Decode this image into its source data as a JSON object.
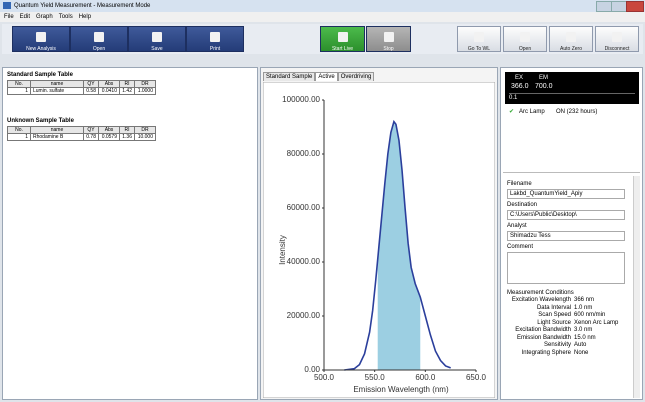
{
  "window": {
    "title": "Quantum Yield Measurement - Measurement Mode"
  },
  "menu": [
    "File",
    "Edit",
    "Graph",
    "Tools",
    "Help"
  ],
  "toolbar": [
    "New Analysis",
    "Open",
    "Save",
    "Print"
  ],
  "live": [
    "Start Live",
    "Stop"
  ],
  "instrument": [
    "Go To WL",
    "Open",
    "Auto Zero",
    "Disconnect"
  ],
  "standard_table": {
    "title": "Standard Sample Table",
    "columns": [
      "No.",
      "name",
      "QY",
      "Abs",
      "RI",
      "DR"
    ],
    "rows": [
      [
        "1",
        "Lumin. sulfate",
        "0.58",
        "0.0410",
        "1.42",
        "1.0000"
      ]
    ]
  },
  "unknown_table": {
    "title": "Unknown Sample Table",
    "columns": [
      "No.",
      "name",
      "QY",
      "Abs",
      "RI",
      "DR"
    ],
    "rows": [
      [
        "1",
        "Rhodamine B",
        "0.78",
        "0.0579",
        "1.36",
        "10.000"
      ]
    ]
  },
  "tabs": [
    "Standard Sample",
    "Active",
    "Overdriving"
  ],
  "chart": {
    "type": "line",
    "x_label": "Emission Wavelength (nm)",
    "y_label": "Intensity",
    "x": [
      520,
      530,
      535,
      540,
      545,
      548,
      551,
      554,
      557,
      560,
      563,
      566,
      569,
      571,
      574,
      577,
      580,
      583,
      586,
      590,
      595,
      600,
      605,
      610,
      615,
      620,
      625
    ],
    "values": [
      0,
      500,
      2000,
      6000,
      14000,
      22000,
      33000,
      45000,
      57000,
      69000,
      80000,
      88000,
      92000,
      91000,
      85000,
      74000,
      60000,
      47000,
      38000,
      32000,
      27000,
      20000,
      13000,
      7000,
      3500,
      1500,
      800
    ],
    "color": "#2b3f9c",
    "shaded_range": [
      553,
      595
    ],
    "shade_color": "#9ccfe2",
    "xlim": [
      500,
      650
    ],
    "ylim": [
      0,
      100000
    ],
    "xticks": [
      {
        "value": 500,
        "label": "500.0"
      },
      {
        "value": 550,
        "label": "550.0"
      },
      {
        "value": 600,
        "label": "600.0"
      },
      {
        "value": 650,
        "label": "650.0"
      }
    ],
    "yticks": [
      {
        "value": 0,
        "label": "0.00"
      },
      {
        "value": 20000,
        "label": "20000.00"
      },
      {
        "value": 40000,
        "label": "40000.00"
      },
      {
        "value": 60000,
        "label": "60000.00"
      },
      {
        "value": 80000,
        "label": "80000.00"
      },
      {
        "value": 100000,
        "label": "100000.00"
      }
    ]
  },
  "status": {
    "ex_label": "EX",
    "em_label": "EM",
    "ex": "366.0",
    "em": "700.0",
    "mode": "0.1"
  },
  "lamp": {
    "name": "Arc Lamp",
    "state": "ON (232 hours)"
  },
  "fields": [
    {
      "label": "Filename",
      "value": "Lakbd_QuantumYield_Apiy"
    },
    {
      "label": "Destination",
      "value": "C:\\Users\\Public\\Desktop\\"
    },
    {
      "label": "Analyst",
      "value": "Shimadzu Tess"
    }
  ],
  "comment_label": "Comment",
  "conditions": {
    "title": "Measurement Conditions",
    "rows": [
      [
        "Excitation Wavelength",
        "366 nm"
      ],
      [
        "Data Interval",
        "1.0 nm"
      ],
      [
        "Scan Speed",
        "600 nm/min"
      ],
      [
        "Light Source",
        "Xenon Arc Lamp"
      ],
      [
        "Excitation Bandwidth",
        "3.0 nm"
      ],
      [
        "Emission Bandwidth",
        "15.0 nm"
      ],
      [
        "Sensitivity",
        "Auto"
      ],
      [
        "Integrating Sphere",
        "None"
      ]
    ]
  }
}
